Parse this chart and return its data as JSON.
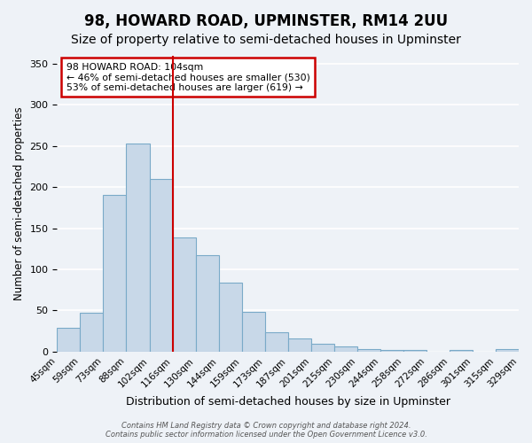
{
  "title": "98, HOWARD ROAD, UPMINSTER, RM14 2UU",
  "subtitle": "Size of property relative to semi-detached houses in Upminster",
  "xlabel": "Distribution of semi-detached houses by size in Upminster",
  "ylabel": "Number of semi-detached properties",
  "bin_edges": [
    "45sqm",
    "59sqm",
    "73sqm",
    "88sqm",
    "102sqm",
    "116sqm",
    "130sqm",
    "144sqm",
    "159sqm",
    "173sqm",
    "187sqm",
    "201sqm",
    "215sqm",
    "230sqm",
    "244sqm",
    "258sqm",
    "272sqm",
    "286sqm",
    "301sqm",
    "315sqm",
    "329sqm"
  ],
  "values": [
    29,
    47,
    191,
    253,
    210,
    139,
    117,
    84,
    48,
    24,
    16,
    10,
    6,
    3,
    2,
    2,
    0,
    2,
    0,
    3
  ],
  "bar_color": "#c8d8e8",
  "bar_edge_color": "#7aaac8",
  "vline_color": "#cc0000",
  "vline_pos": 4,
  "ylim": [
    0,
    360
  ],
  "yticks": [
    0,
    50,
    100,
    150,
    200,
    250,
    300,
    350
  ],
  "annotation_title": "98 HOWARD ROAD: 104sqm",
  "annotation_line1": "← 46% of semi-detached houses are smaller (530)",
  "annotation_line2": "53% of semi-detached houses are larger (619) →",
  "annotation_box_color": "#ffffff",
  "annotation_box_edge": "#cc0000",
  "footer1": "Contains HM Land Registry data © Crown copyright and database right 2024.",
  "footer2": "Contains public sector information licensed under the Open Government Licence v3.0.",
  "background_color": "#eef2f7",
  "grid_color": "#ffffff",
  "title_fontsize": 12,
  "subtitle_fontsize": 10
}
